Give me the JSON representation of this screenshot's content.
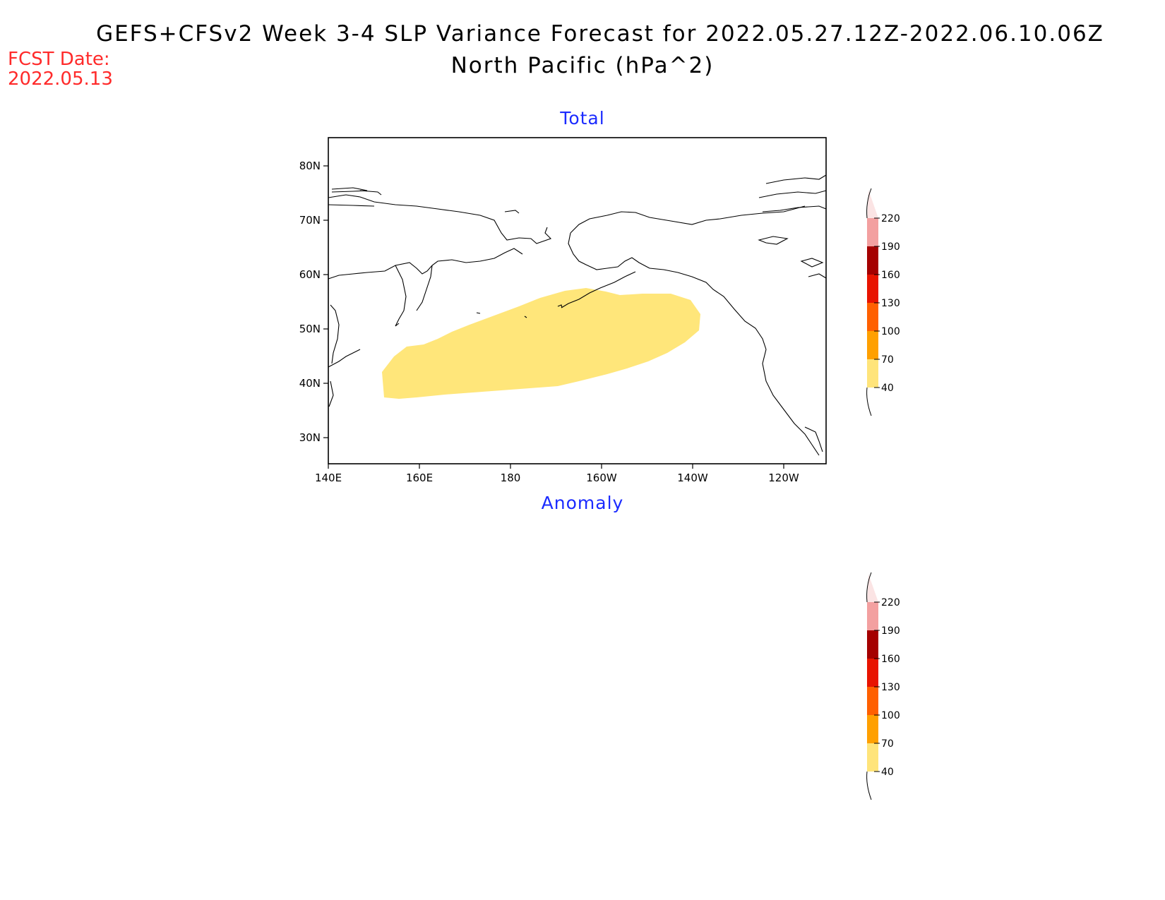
{
  "title": {
    "line1": "GEFS+CFSv2 Week 3-4 SLP Variance Forecast for 2022.05.27.12Z-2022.06.10.06Z",
    "line2": "North Pacific (hPa^2)"
  },
  "forecast": {
    "label": "FCST Date:",
    "date": "2022.05.13"
  },
  "panels": {
    "total": {
      "title": "Total",
      "lat_labels": [
        "80N",
        "70N",
        "60N",
        "50N",
        "40N",
        "30N"
      ],
      "lon_labels": [
        "140E",
        "160E",
        "180",
        "160W",
        "140W",
        "120W"
      ]
    },
    "anomaly": {
      "title": "Anomaly"
    }
  },
  "colorbar": {
    "levels": [
      "40",
      "70",
      "100",
      "130",
      "160",
      "190",
      "220"
    ],
    "colors": [
      "#ffe47a",
      "#ffa000",
      "#ff6000",
      "#e81400",
      "#a50000",
      "#f3a0a0",
      "#fbe4e4"
    ]
  },
  "shading": {
    "variable": "SLP variance",
    "units": "hPa^2",
    "region_color": "#ffe67a",
    "region_level": "40-70"
  }
}
